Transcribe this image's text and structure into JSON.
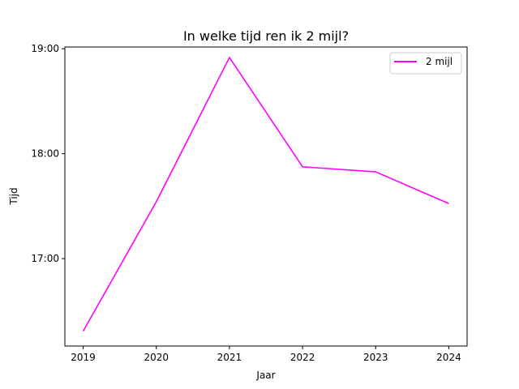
{
  "chart_data": {
    "type": "line",
    "title": "In welke tijd ren ik 2 mijl?",
    "xlabel": "Jaar",
    "ylabel": "Tijd",
    "x": [
      2019,
      2020,
      2021,
      2022,
      2023,
      2024
    ],
    "x_ticks": [
      "2019",
      "2020",
      "2021",
      "2022",
      "2023",
      "2024"
    ],
    "xlim": [
      2018.75,
      2024.25
    ],
    "y_unit": "minutes",
    "y_ticks": [
      {
        "value": 1020,
        "label": "17:00"
      },
      {
        "value": 1080,
        "label": "18:00"
      },
      {
        "value": 1140,
        "label": "19:00"
      }
    ],
    "ylim": [
      970,
      1141
    ],
    "series": [
      {
        "name": "2 mijl",
        "color": "#ff00ff",
        "values": [
          978.5,
          1052.5,
          1135.0,
          1072.5,
          1069.6,
          1051.5
        ]
      }
    ],
    "legend": "top-right",
    "grid": false
  }
}
